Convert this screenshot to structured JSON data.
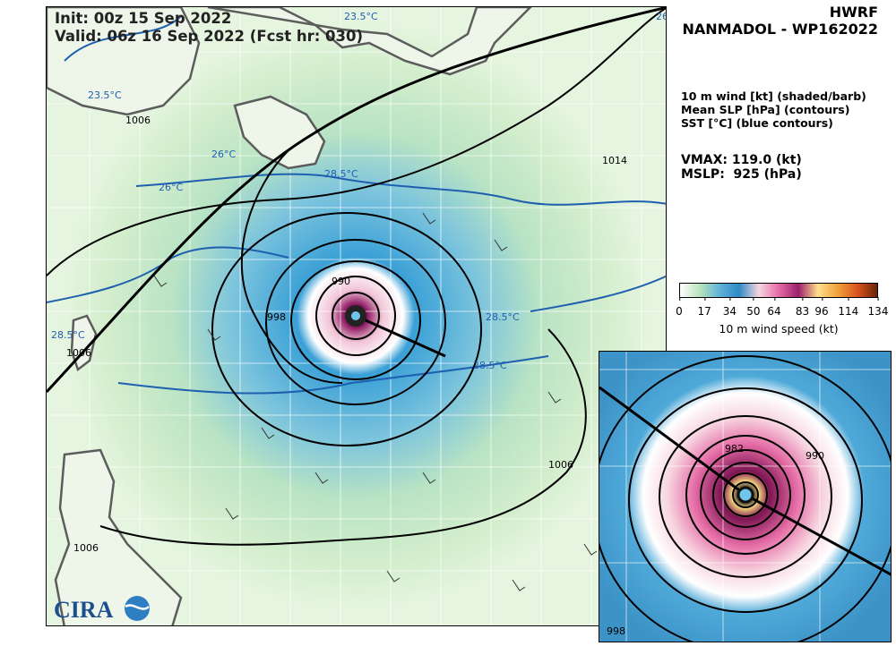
{
  "header": {
    "init": "Init: 00z 15 Sep 2022",
    "valid": "Valid: 06z 16 Sep 2022 (Fcst hr: 030)"
  },
  "title": {
    "model": "HWRF",
    "storm": "NANMADOL - WP162022"
  },
  "legend": {
    "line1": "10 m wind [kt] (shaded/barb)",
    "line2": "Mean SLP [hPa] (contours)",
    "line3": "SST [°C] (blue contours)"
  },
  "stats": {
    "vmax_label": "VMAX:",
    "vmax_value": "119.0 (kt)",
    "mslp_label": "MSLP:",
    "mslp_value": " 925 (hPa)"
  },
  "colorbar": {
    "ticks": [
      "0",
      "17",
      "34",
      "50",
      "64",
      "83",
      "96",
      "114",
      "134"
    ],
    "tick_values": [
      0,
      17,
      34,
      50,
      64,
      83,
      96,
      114,
      134
    ],
    "max": 134,
    "label": "10 m wind speed (kt)",
    "colors": [
      "#ffffff",
      "#b9e3bc",
      "#5fb3d9",
      "#2e8ac6",
      "#f7d6e0",
      "#e56ca6",
      "#9c1f6c",
      "#ffe08a",
      "#f2a13b",
      "#d9531e",
      "#6b2206"
    ]
  },
  "map": {
    "slp_labels": [
      "1006",
      "1014",
      "998",
      "990",
      "1006",
      "1006",
      "1006"
    ],
    "sst_labels": [
      "23.5°C",
      "23.5°C",
      "26°C",
      "26°C",
      "28.5°C",
      "28.5°C",
      "28.5°C",
      "28.5°C",
      "26°C"
    ],
    "land_color": "#5c5c5c",
    "slp_color": "#000000",
    "sst_color": "#1f5fb0"
  },
  "inset": {
    "slp_labels": [
      "982",
      "990",
      "998"
    ]
  },
  "logo": {
    "text": "CIRA"
  }
}
